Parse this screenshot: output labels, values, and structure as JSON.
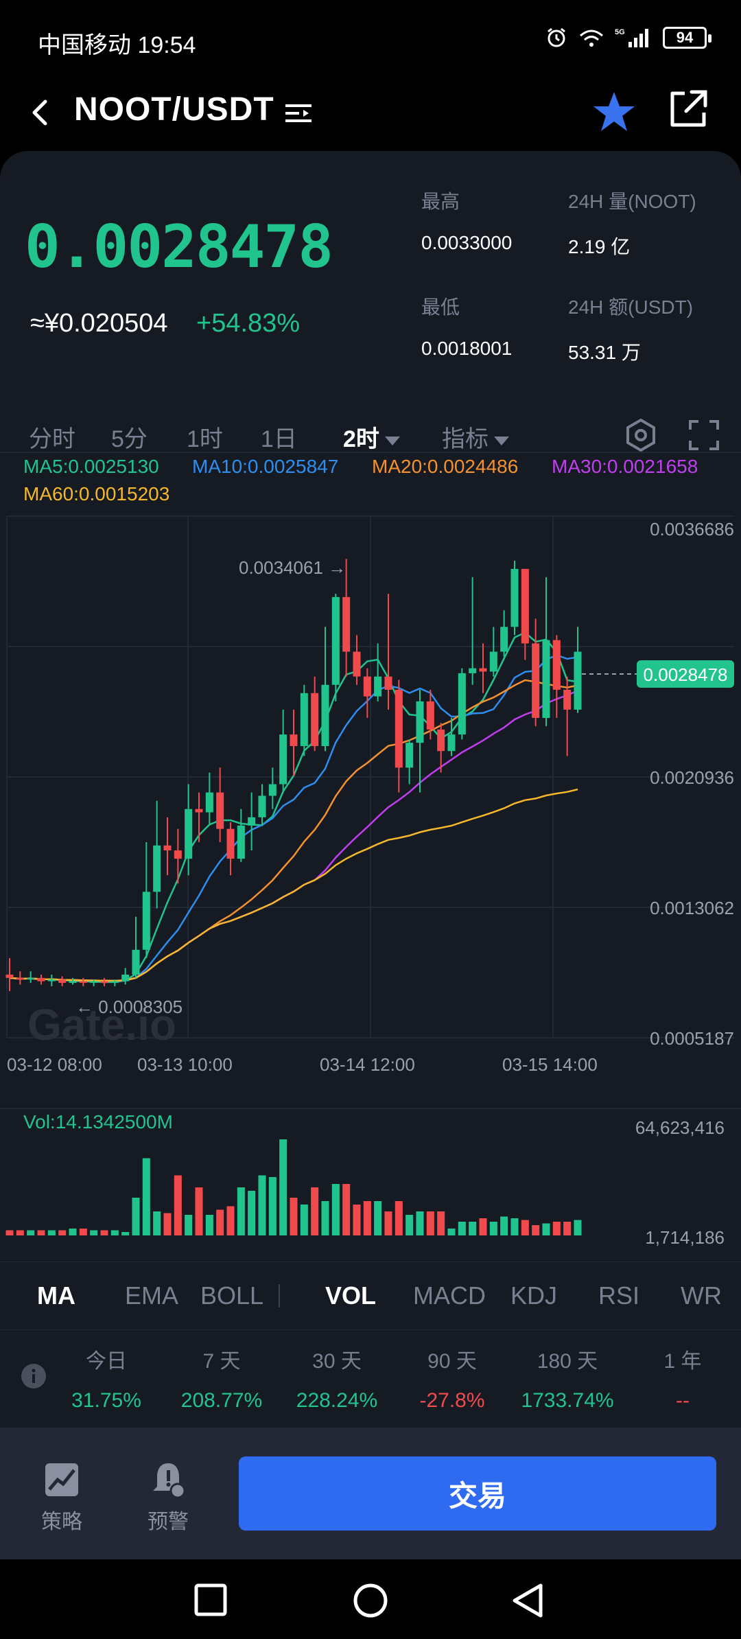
{
  "status_bar": {
    "carrier_time": "中国移动 19:54",
    "battery": "94",
    "network": "5G"
  },
  "header": {
    "title": "NOOT/USDT"
  },
  "ticker": {
    "last_price": "0.0028478",
    "cny_price": "≈¥0.020504",
    "change": "+54.83%",
    "high_label": "最高",
    "high_value": "0.0033000",
    "vol_label": "24H 量(NOOT)",
    "vol_value": "2.19 亿",
    "low_label": "最低",
    "low_value": "0.0018001",
    "amount_label": "24H 额(USDT)",
    "amount_value": "53.31 万"
  },
  "timeframes": [
    "分时",
    "5分",
    "1时",
    "1日",
    "2时",
    "指标"
  ],
  "ma_legend": {
    "ma5": "MA5:0.0025130",
    "ma10": "MA10:0.0025847",
    "ma20": "MA20:0.0024486",
    "ma30": "MA30:0.0021658",
    "ma60": "MA60:0.0015203"
  },
  "colors": {
    "up": "#22c48e",
    "down": "#f04a4d",
    "ma5": "#22c48e",
    "ma10": "#2e8ef0",
    "ma20": "#f5912f",
    "ma30": "#c13ef0",
    "ma60": "#f5b82a",
    "accent": "#2f6bf0"
  },
  "chart_data": {
    "type": "candlestick",
    "y_ticks": [
      "0.0036686",
      "0.0028478",
      "0.0020936",
      "0.0013062",
      "0.0005187"
    ],
    "x_ticks": [
      "03-12 08:00",
      "03-13 10:00",
      "03-14 12:00",
      "03-15 14:00"
    ],
    "ylim": [
      0.0005187,
      0.0036686
    ],
    "high_annotation": "0.0034061 →",
    "low_annotation": "← 0.0008305",
    "current_price_tag": "0.0028478",
    "candles": [
      [
        0.0009,
        0.00088,
        0.001,
        0.0008
      ],
      [
        0.00088,
        0.00087,
        0.00092,
        0.00084
      ],
      [
        0.00087,
        0.00088,
        0.00092,
        0.00085
      ],
      [
        0.00088,
        0.00086,
        0.0009,
        0.00084
      ],
      [
        0.00086,
        0.00087,
        0.0009,
        0.00083
      ],
      [
        0.00087,
        0.00085,
        0.00089,
        0.00083
      ],
      [
        0.00085,
        0.00086,
        0.00088,
        0.00084
      ],
      [
        0.00086,
        0.00085,
        0.00088,
        0.00083
      ],
      [
        0.00085,
        0.00086,
        0.00087,
        0.00083
      ],
      [
        0.00086,
        0.00085,
        0.00088,
        0.00083
      ],
      [
        0.00085,
        0.00086,
        0.00087,
        0.00083
      ],
      [
        0.00086,
        0.0009,
        0.00094,
        0.00084
      ],
      [
        0.0009,
        0.00105,
        0.00125,
        0.00088
      ],
      [
        0.00105,
        0.0014,
        0.0017,
        0.001
      ],
      [
        0.0014,
        0.00168,
        0.00195,
        0.0013
      ],
      [
        0.00168,
        0.00165,
        0.00185,
        0.0015
      ],
      [
        0.00165,
        0.0016,
        0.00178,
        0.00145
      ],
      [
        0.0016,
        0.0019,
        0.00205,
        0.0015
      ],
      [
        0.0019,
        0.00188,
        0.002,
        0.0017
      ],
      [
        0.00188,
        0.002,
        0.00212,
        0.0018
      ],
      [
        0.002,
        0.00178,
        0.00215,
        0.0017
      ],
      [
        0.00178,
        0.0016,
        0.00182,
        0.0015
      ],
      [
        0.0016,
        0.0018,
        0.0019,
        0.00158
      ],
      [
        0.0018,
        0.00185,
        0.002,
        0.00165
      ],
      [
        0.00185,
        0.00198,
        0.00205,
        0.0018
      ],
      [
        0.00198,
        0.00205,
        0.00215,
        0.0019
      ],
      [
        0.00205,
        0.00235,
        0.0025,
        0.002
      ],
      [
        0.00235,
        0.00228,
        0.0025,
        0.0021
      ],
      [
        0.00228,
        0.0026,
        0.00265,
        0.00222
      ],
      [
        0.0026,
        0.00228,
        0.0027,
        0.00225
      ],
      [
        0.00228,
        0.00265,
        0.003,
        0.00225
      ],
      [
        0.00265,
        0.00318,
        0.0032,
        0.00255
      ],
      [
        0.00318,
        0.00285,
        0.00341,
        0.0027
      ],
      [
        0.00285,
        0.0027,
        0.00295,
        0.00265
      ],
      [
        0.0027,
        0.00258,
        0.00275,
        0.00245
      ],
      [
        0.00258,
        0.0027,
        0.0029,
        0.00255
      ],
      [
        0.0027,
        0.00262,
        0.0032,
        0.0025
      ],
      [
        0.00262,
        0.00215,
        0.00268,
        0.002
      ],
      [
        0.00215,
        0.0023,
        0.00232,
        0.00205
      ],
      [
        0.0023,
        0.00255,
        0.00262,
        0.002
      ],
      [
        0.00255,
        0.00238,
        0.00262,
        0.00232
      ],
      [
        0.00238,
        0.00225,
        0.00242,
        0.00212
      ],
      [
        0.00225,
        0.00235,
        0.00245,
        0.00222
      ],
      [
        0.00235,
        0.00272,
        0.00275,
        0.00232
      ],
      [
        0.00272,
        0.00275,
        0.0033,
        0.00265
      ],
      [
        0.00275,
        0.00273,
        0.0029,
        0.0026
      ],
      [
        0.00273,
        0.00285,
        0.003,
        0.0027
      ],
      [
        0.00285,
        0.003,
        0.0031,
        0.00282
      ],
      [
        0.003,
        0.00335,
        0.0034,
        0.00295
      ],
      [
        0.00335,
        0.0029,
        0.00335,
        0.0028
      ],
      [
        0.0029,
        0.00245,
        0.00305,
        0.0024
      ],
      [
        0.00245,
        0.00292,
        0.0033,
        0.0024
      ],
      [
        0.00292,
        0.00262,
        0.00295,
        0.00245
      ],
      [
        0.00262,
        0.0025,
        0.0027,
        0.00222
      ],
      [
        0.0025,
        0.00285,
        0.003,
        0.00248
      ]
    ],
    "volume_label": "Vol:14.1342500M",
    "volume_ticks": [
      "64,623,416",
      "1,714,186"
    ],
    "volumes": [
      3,
      3,
      3,
      3,
      3,
      3,
      4,
      4,
      3,
      3,
      3,
      2,
      22,
      45,
      14,
      13,
      35,
      12,
      28,
      12,
      15,
      17,
      28,
      26,
      35,
      34,
      56,
      22,
      18,
      28,
      20,
      30,
      30,
      18,
      20,
      20,
      14,
      20,
      12,
      14,
      14,
      14,
      4,
      8,
      8,
      10,
      8,
      11,
      10,
      9,
      6,
      7,
      8,
      8,
      9
    ]
  },
  "indicator_tabs": [
    "MA",
    "EMA",
    "BOLL",
    "VOL",
    "MACD",
    "KDJ",
    "RSI",
    "WR"
  ],
  "performance": [
    {
      "label": "今日",
      "value": "31.75%",
      "color": "#22c48e"
    },
    {
      "label": "7 天",
      "value": "208.77%",
      "color": "#22c48e"
    },
    {
      "label": "30 天",
      "value": "228.24%",
      "color": "#22c48e"
    },
    {
      "label": "90 天",
      "value": "-27.8%",
      "color": "#f04a4d"
    },
    {
      "label": "180 天",
      "value": "1733.74%",
      "color": "#22c48e"
    },
    {
      "label": "1 年",
      "value": "--",
      "color": "#f04a4d"
    }
  ],
  "footer": {
    "strategy_label": "策略",
    "alert_label": "预警",
    "trade_label": "交易"
  },
  "watermark": "Gate.io"
}
